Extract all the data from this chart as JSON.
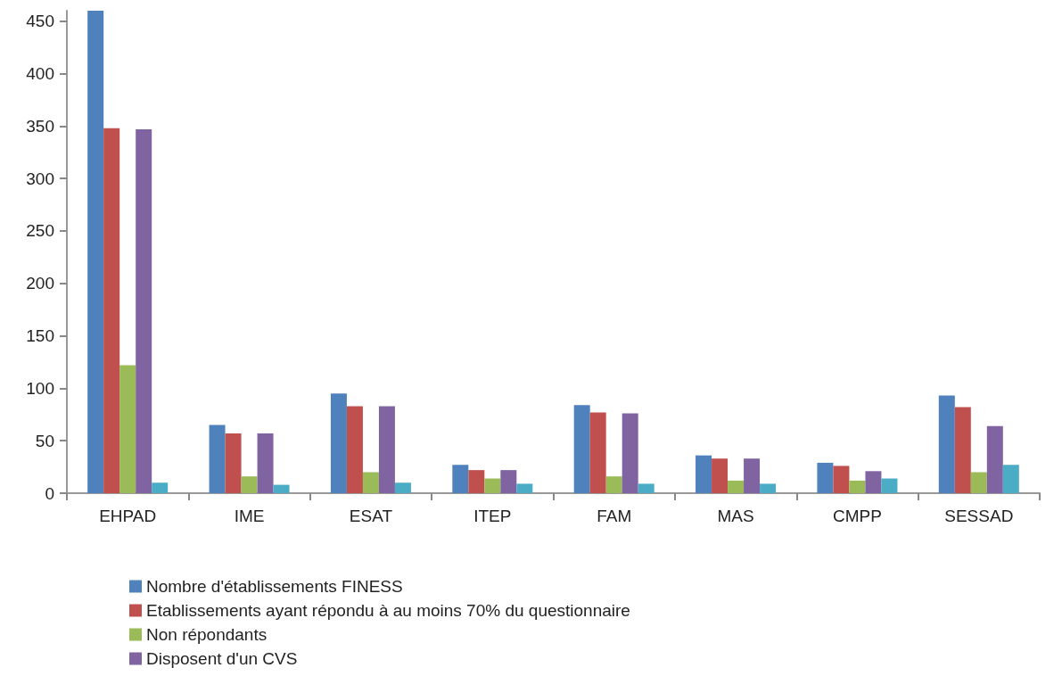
{
  "chart_data": {
    "type": "bar",
    "categories": [
      "EHPAD",
      "IME",
      "ESAT",
      "ITEP",
      "FAM",
      "MAS",
      "CMPP",
      "SESSAD"
    ],
    "series": [
      {
        "name": "Nombre d'établissements FINESS",
        "color": "#4f81bd",
        "values": [
          460,
          65,
          95,
          27,
          84,
          36,
          29,
          93
        ]
      },
      {
        "name": "Etablissements ayant répondu à au moins 70% du questionnaire",
        "color": "#c0504d",
        "values": [
          348,
          57,
          83,
          22,
          77,
          33,
          26,
          82
        ]
      },
      {
        "name": "Non répondants",
        "color": "#9bbb59",
        "values": [
          122,
          16,
          20,
          14,
          16,
          12,
          12,
          20
        ]
      },
      {
        "name": "Disposent d'un CVS",
        "color": "#8064a2",
        "values": [
          347,
          57,
          83,
          22,
          76,
          33,
          21,
          64
        ]
      },
      {
        "color": "#4bacc6",
        "values": [
          10,
          8,
          10,
          9,
          9,
          9,
          14,
          27
        ]
      }
    ],
    "ylim": [
      0,
      460
    ],
    "yticks": [
      0,
      50,
      100,
      150,
      200,
      250,
      300,
      350,
      400,
      450
    ],
    "grid": false,
    "legend": "bottom"
  }
}
